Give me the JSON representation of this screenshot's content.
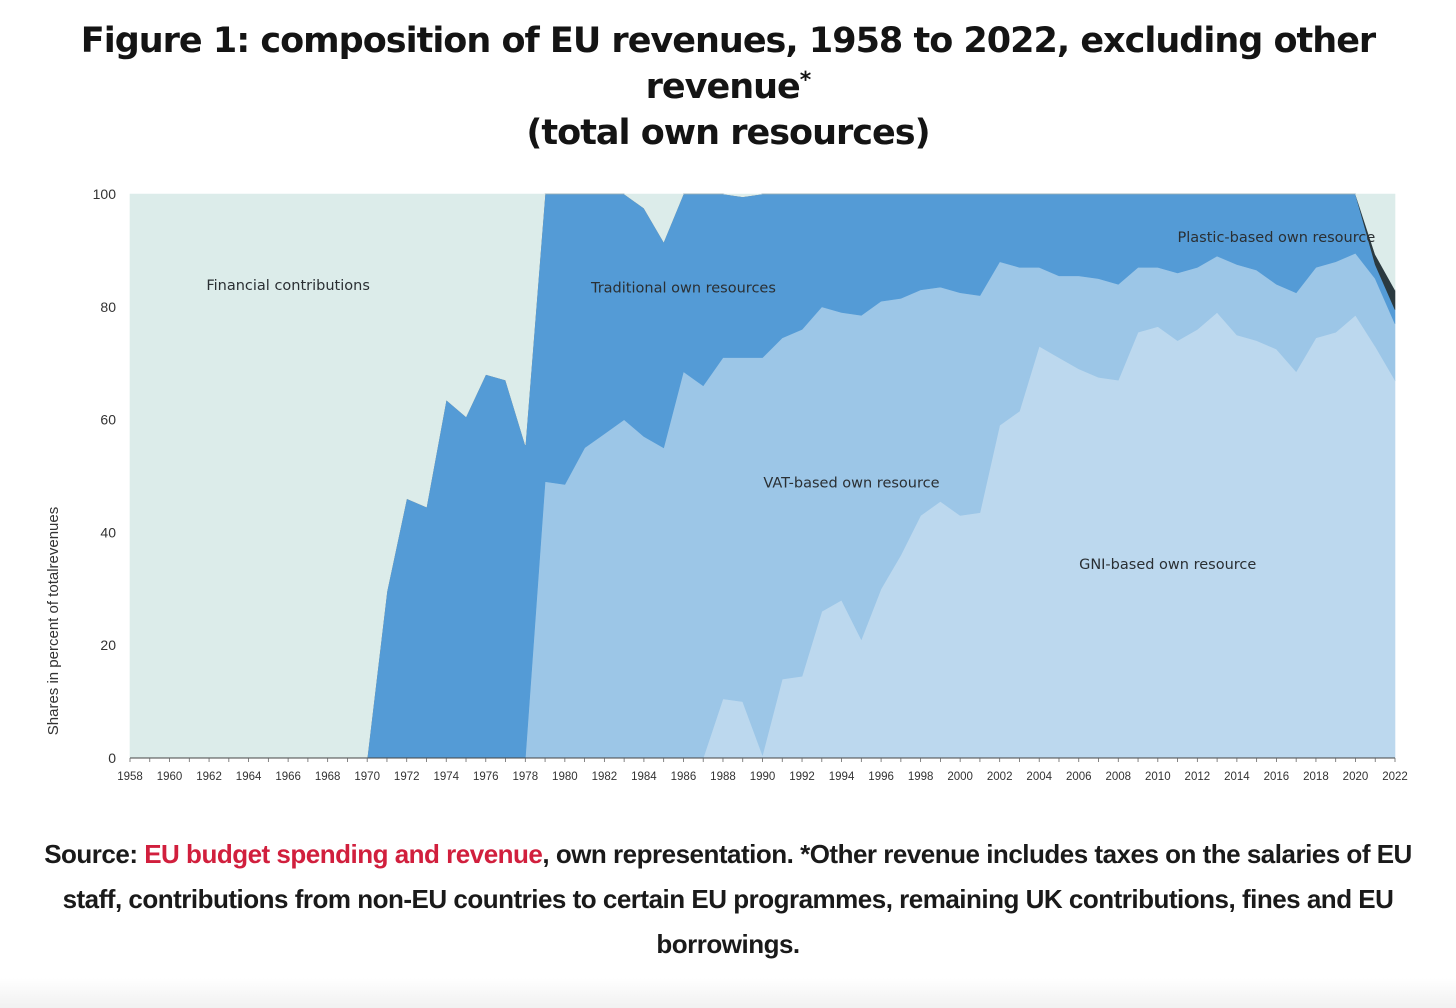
{
  "title": {
    "main": "Figure 1: composition of EU revenues, 1958 to 2022, excluding other revenue",
    "marker": "*",
    "line2": "(total own resources)"
  },
  "source": {
    "prefix": "Source: ",
    "link_text": "EU budget spending and revenue",
    "rest": ", own representation. *Other revenue includes taxes on the salaries of EU staff, contributions from non-EU countries to certain EU programmes, remaining UK contributions, fines and EU borrowings."
  },
  "colors": {
    "financial": "#dcecea",
    "traditional": "#549bd6",
    "vat": "#9cc6e7",
    "gni": "#bcd8ee",
    "plastic": "#2b3a40",
    "link": "#d11f3d"
  },
  "chart_data": {
    "type": "area",
    "stacked": true,
    "ylabel": "Shares in percent of totalrevenues",
    "ylim": [
      0,
      100
    ],
    "yticks": [
      0,
      20,
      40,
      60,
      80,
      100
    ],
    "x": [
      1958,
      1959,
      1960,
      1961,
      1962,
      1963,
      1964,
      1965,
      1966,
      1967,
      1968,
      1969,
      1970,
      1971,
      1972,
      1973,
      1974,
      1975,
      1976,
      1977,
      1978,
      1979,
      1980,
      1981,
      1982,
      1983,
      1984,
      1985,
      1986,
      1987,
      1988,
      1989,
      1990,
      1991,
      1992,
      1993,
      1994,
      1995,
      1996,
      1997,
      1998,
      1999,
      2000,
      2001,
      2002,
      2003,
      2004,
      2005,
      2006,
      2007,
      2008,
      2009,
      2010,
      2011,
      2012,
      2013,
      2014,
      2015,
      2016,
      2017,
      2018,
      2019,
      2020,
      2021,
      2022
    ],
    "xticks": [
      1958,
      1960,
      1962,
      1964,
      1966,
      1968,
      1970,
      1972,
      1974,
      1976,
      1978,
      1980,
      1982,
      1984,
      1986,
      1988,
      1990,
      1992,
      1994,
      1996,
      1998,
      2000,
      2002,
      2004,
      2006,
      2008,
      2010,
      2012,
      2014,
      2016,
      2018,
      2020,
      2022
    ],
    "series": [
      {
        "name": "GNI-based own resource",
        "color": "#bcd8ee",
        "values": [
          0,
          0,
          0,
          0,
          0,
          0,
          0,
          0,
          0,
          0,
          0,
          0,
          0,
          0,
          0,
          0,
          0,
          0,
          0,
          0,
          0,
          0,
          0,
          0,
          0,
          0,
          0,
          0,
          0,
          0,
          10.5,
          10,
          0.5,
          14,
          14.5,
          26,
          28,
          21,
          30,
          36,
          43,
          45.5,
          43,
          43.5,
          59,
          61.5,
          73,
          71,
          69,
          67.5,
          67,
          75.5,
          76.5,
          74,
          76,
          79,
          75,
          74,
          72.5,
          68.5,
          74.5,
          75.5,
          78.5,
          73,
          67
        ]
      },
      {
        "name": "VAT-based own resource",
        "color": "#9cc6e7",
        "values": [
          0,
          0,
          0,
          0,
          0,
          0,
          0,
          0,
          0,
          0,
          0,
          0,
          0,
          0,
          0,
          0,
          0,
          0,
          0,
          0,
          0,
          49,
          48.5,
          55,
          57.5,
          60,
          57,
          55,
          68.5,
          66,
          60.5,
          61,
          70.5,
          60.5,
          61.5,
          54,
          51,
          57.5,
          51,
          45.5,
          40,
          38,
          39.5,
          38.5,
          29,
          25.5,
          14,
          14.5,
          16.5,
          17.5,
          17,
          11.5,
          10.5,
          12,
          11,
          10,
          12.5,
          12.5,
          11.5,
          14,
          12.5,
          12.5,
          11,
          12,
          10
        ]
      },
      {
        "name": "Traditional own resources",
        "color": "#549bd6",
        "values": [
          0,
          0,
          0,
          0,
          0,
          0,
          0,
          0,
          0,
          0,
          0,
          0,
          0,
          29.5,
          46,
          44.5,
          63.5,
          60.5,
          68,
          67,
          55.5,
          51,
          51.5,
          45,
          42.5,
          40,
          40.5,
          36.5,
          31.5,
          34,
          29,
          28.5,
          29,
          25.5,
          24,
          20,
          21,
          21.5,
          19,
          18.5,
          17,
          16.5,
          17.5,
          18,
          12,
          13,
          13,
          14.5,
          14.5,
          15,
          16,
          13,
          13,
          14,
          13,
          11,
          12.5,
          13.5,
          16,
          17.5,
          13,
          12,
          10.5,
          2.5,
          2.5
        ]
      },
      {
        "name": "Plastic-based own resource",
        "color": "#2b3a40",
        "values": [
          0,
          0,
          0,
          0,
          0,
          0,
          0,
          0,
          0,
          0,
          0,
          0,
          0,
          0,
          0,
          0,
          0,
          0,
          0,
          0,
          0,
          0,
          0,
          0,
          0,
          0,
          0,
          0,
          0,
          0,
          0,
          0,
          0,
          0,
          0,
          0,
          0,
          0,
          0,
          0,
          0,
          0,
          0,
          0,
          0,
          0,
          0,
          0,
          0,
          0,
          0,
          0,
          0,
          0,
          0,
          0,
          0,
          0,
          0,
          0,
          0,
          0,
          0,
          1.8,
          3.5
        ]
      },
      {
        "name": "Financial contributions",
        "color": "#dcecea",
        "values": [
          100,
          100,
          100,
          100,
          100,
          100,
          100,
          100,
          100,
          100,
          100,
          100,
          100,
          70.5,
          54,
          55.5,
          36.5,
          39.5,
          32,
          33,
          44.5,
          0,
          0,
          0,
          0,
          0,
          2.5,
          8.5,
          0,
          0,
          0,
          0.5,
          0,
          0,
          0,
          0,
          0,
          0,
          0,
          0,
          0,
          0,
          0,
          0,
          0,
          0,
          0,
          0,
          0,
          0,
          0,
          0,
          0,
          0,
          0,
          0,
          0,
          0,
          0,
          0,
          0,
          0,
          0,
          10.7,
          17
        ]
      }
    ],
    "annotations": [
      {
        "text": "Financial contributions",
        "x": 1966,
        "y": 83
      },
      {
        "text": "Traditional own resources",
        "x": 1986,
        "y": 82.5
      },
      {
        "text": "VAT-based own resource",
        "x": 1994.5,
        "y": 48
      },
      {
        "text": "GNI-based own resource",
        "x": 2010.5,
        "y": 33.5
      },
      {
        "text": "Plastic-based own resource",
        "x": 2016,
        "y": 91.5
      }
    ]
  }
}
